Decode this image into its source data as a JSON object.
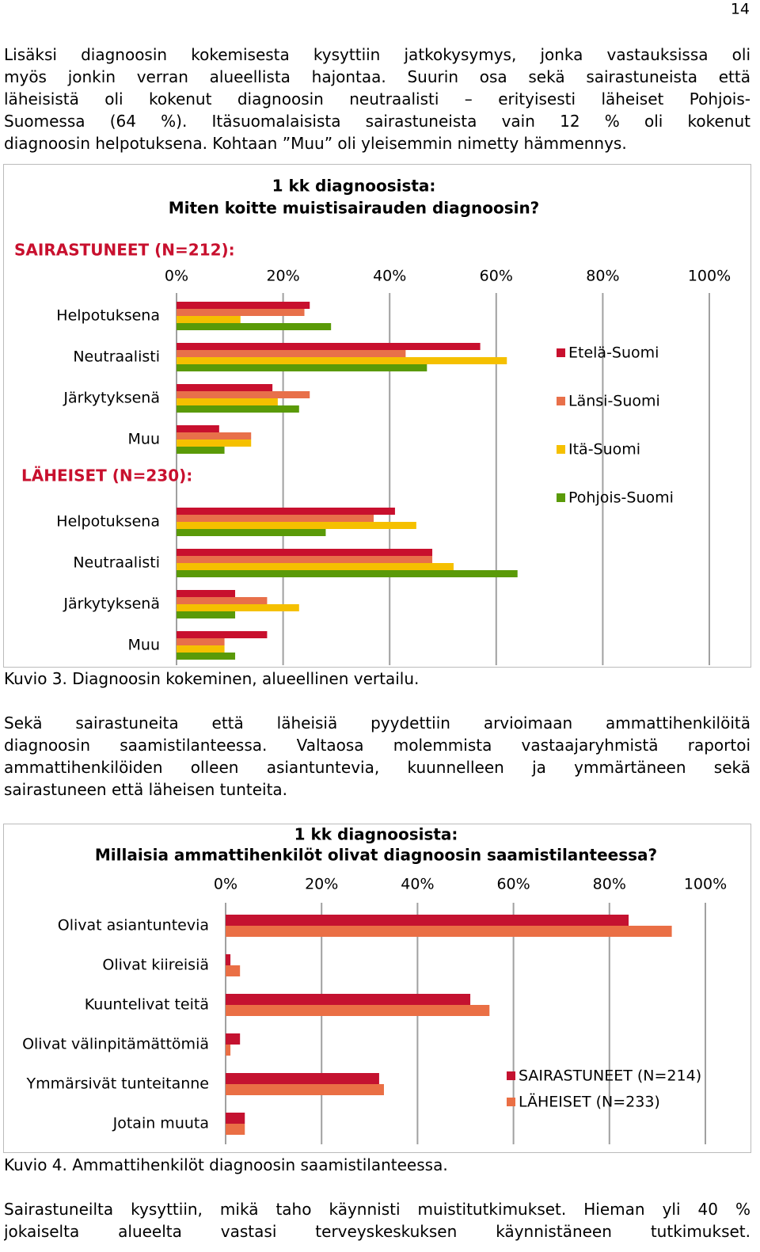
{
  "page_number": "14",
  "paragraphs": [
    [
      "Lisäksi diagnoosin kokemisesta kysyttiin jatkokysymys, jonka vastauksissa oli",
      "myös jonkin verran alueellista hajontaa. Suurin osa sekä sairastuneista että",
      "läheisistä oli kokenut diagnoosin neutraalisti – erityisesti läheiset Pohjois-",
      "Suomessa (64 %). Itäsuomalaisista sairastuneista vain 12 % oli kokenut",
      "diagnoosin helpotuksena. Kohtaan ”Muu” oli yleisemmin nimetty hämmennys."
    ],
    [
      "Sekä sairastuneita että läheisiä pyydettiin arvioimaan ammattihenkilöitä",
      "diagnoosin saamistilanteessa. Valtaosa molemmista vastaajaryhmistä raportoi",
      "ammattihenkilöiden olleen asiantuntevia, kuunnelleen ja ymmärtäneen sekä",
      "sairastuneen että läheisen tunteita."
    ],
    [
      "Sairastuneilta kysyttiin, mikä taho käynnisti muistitutkimukset. Hieman yli 40 %",
      "jokaiselta alueelta vastasi terveyskeskuksen käynnistäneen tutkimukset."
    ]
  ],
  "captions": [
    "Kuvio 3. Diagnoosin kokeminen, alueellinen vertailu.",
    "Kuvio 4. Ammattihenkilöt diagnoosin saamistilanteessa."
  ],
  "chart_data": [
    {
      "type": "hbar",
      "title": [
        "1 kk diagnoosista:",
        "Miten koitte muistisairauden diagnoosin?"
      ],
      "group_title": "SAIRASTUNEET (N=212):",
      "categories": [
        "Helpotuksena",
        "Neutraalisti",
        "Järkytyksenä",
        "Muu",
        "LÄHEISET (N=230):",
        "Helpotuksena",
        "Neutraalisti",
        "Järkytyksenä",
        "Muu"
      ],
      "series": [
        {
          "name": "Etelä-Suomi",
          "color": "#c8102e",
          "values": [
            25,
            57,
            18,
            8,
            null,
            41,
            48,
            11,
            17
          ]
        },
        {
          "name": "Länsi-Suomi",
          "color": "#e8704a",
          "values": [
            24,
            43,
            25,
            14,
            null,
            37,
            48,
            17,
            9
          ]
        },
        {
          "name": "Itä-Suomi",
          "color": "#f5c000",
          "values": [
            12,
            62,
            19,
            14,
            null,
            45,
            52,
            23,
            9
          ]
        },
        {
          "name": "Pohjois-Suomi",
          "color": "#5a9a08",
          "values": [
            29,
            47,
            23,
            9,
            null,
            28,
            64,
            11,
            11
          ]
        }
      ],
      "xlim": [
        0,
        100
      ],
      "xticks": [
        {
          "value": 0,
          "label": "0%"
        },
        {
          "value": 20,
          "label": "20%"
        },
        {
          "value": 40,
          "label": "40%"
        },
        {
          "value": 60,
          "label": "60%"
        },
        {
          "value": 80,
          "label": "80%"
        },
        {
          "value": 100,
          "label": "100%"
        }
      ],
      "grid": true,
      "legend": "right"
    },
    {
      "type": "hbar",
      "title": [
        "1 kk diagnoosista:",
        "Millaisia ammattihenkilöt olivat diagnoosin saamistilanteessa?"
      ],
      "categories": [
        "Olivat asiantuntevia",
        "Olivat kiireisiä",
        "Kuuntelivat teitä",
        "Olivat välinpitämättömiä",
        "Ymmärsivät tunteitanne",
        "Jotain muuta"
      ],
      "series": [
        {
          "name": "SAIRASTUNEET (N=214)",
          "color": "#c41230",
          "values": [
            84,
            1,
            51,
            3,
            32,
            4
          ]
        },
        {
          "name": "LÄHEISET (N=233)",
          "color": "#ea6f45",
          "values": [
            93,
            3,
            55,
            1,
            33,
            4
          ]
        }
      ],
      "xlim": [
        0,
        100
      ],
      "xticks": [
        {
          "value": 0,
          "label": "0%"
        },
        {
          "value": 20,
          "label": "20%"
        },
        {
          "value": 40,
          "label": "40%"
        },
        {
          "value": 60,
          "label": "60%"
        },
        {
          "value": 80,
          "label": "80%"
        },
        {
          "value": 100,
          "label": "100%"
        }
      ],
      "grid": true,
      "legend": "right"
    }
  ]
}
